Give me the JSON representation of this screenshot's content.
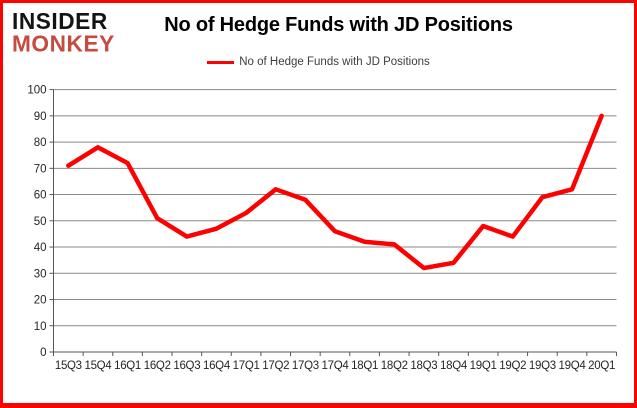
{
  "page": {
    "logo": {
      "line1": "INSIDER",
      "line2": "MONKEY"
    },
    "title": "No of Hedge Funds with JD Positions",
    "legend": {
      "label": "No of Hedge Funds with JD Positions"
    }
  },
  "colors": {
    "frame_border": "#fb0400",
    "series_line": "#fe0000",
    "gridline": "#8a8a8a",
    "axis": "#555555",
    "tick_label": "#262626",
    "logo_black": "#141414",
    "logo_red": "#c7493f"
  },
  "chart_data": {
    "type": "line",
    "title": "No of Hedge Funds with JD Positions",
    "categories": [
      "15Q3",
      "15Q4",
      "16Q1",
      "16Q2",
      "16Q3",
      "16Q4",
      "17Q1",
      "17Q2",
      "17Q3",
      "17Q4",
      "18Q1",
      "18Q2",
      "18Q3",
      "18Q4",
      "19Q1",
      "19Q2",
      "19Q3",
      "19Q4",
      "20Q1"
    ],
    "series": [
      {
        "name": "No of Hedge Funds with JD Positions",
        "color": "#fe0000",
        "values": [
          71,
          78,
          72,
          51,
          44,
          47,
          53,
          62,
          58,
          46,
          42,
          41,
          32,
          34,
          48,
          44,
          59,
          62,
          90
        ]
      }
    ],
    "xlabel": "",
    "ylabel": "",
    "ylim": [
      0,
      100
    ],
    "yticks": [
      0,
      10,
      20,
      30,
      40,
      50,
      60,
      70,
      80,
      90,
      100
    ],
    "grid": "horizontal",
    "legend_position": "top-center"
  }
}
